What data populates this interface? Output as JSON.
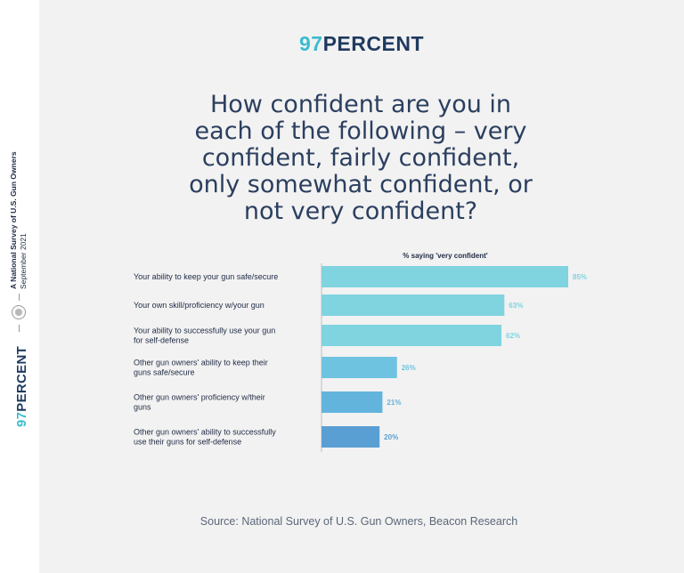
{
  "sidebar": {
    "title": "A National Survey of U.S. Gun Owners",
    "date": "September 2021",
    "logo_num": "97",
    "logo_word": "PERCENT"
  },
  "header": {
    "logo_num": "97",
    "logo_word": "PERCENT"
  },
  "question": "How confident are you in each of the following – very confident, fairly confident, only somewhat confident, or not very confident?",
  "source": "Source: National Survey of U.S. Gun Owners, Beacon Research",
  "colors": {
    "bar_light": "#7fd4e0",
    "bar_mid": "#6ec4e0",
    "bar_dark": "#5a9fd4",
    "background": "#f2f2f2"
  },
  "chart_data": {
    "type": "bar",
    "orientation": "horizontal",
    "series_label": "% saying 'very confident'",
    "categories": [
      [
        "Your ability to keep your gun safe/secure"
      ],
      [
        "Your own skill/proficiency w/your gun"
      ],
      [
        "Your ability to successfully use your gun",
        "for self-defense"
      ],
      [
        "Other gun owners' ability to keep their",
        "guns safe/secure"
      ],
      [
        "Other gun owners' proficiency w/their",
        "guns"
      ],
      [
        "Other gun owners' ability to successfully",
        "use their guns for self-defense"
      ]
    ],
    "values": [
      85,
      63,
      62,
      26,
      21,
      20
    ],
    "value_labels": [
      "85%",
      "63%",
      "62%",
      "26%",
      "21%",
      "20%"
    ],
    "bar_colors": [
      "#7fd4e0",
      "#7fd4e0",
      "#7fd4e0",
      "#6ec4e0",
      "#62b4dc",
      "#5a9fd4"
    ],
    "xlim": [
      0,
      85
    ]
  }
}
